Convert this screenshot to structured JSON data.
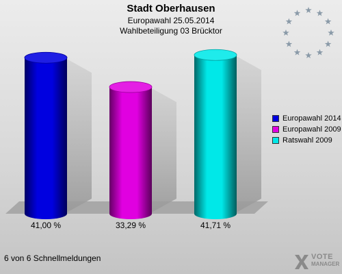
{
  "header": {
    "title": "Stadt Oberhausen",
    "subtitle1": "Europawahl 25.05.2014",
    "subtitle2": "Wahlbeteiligung 03 Brücktor"
  },
  "chart_data": {
    "type": "bar",
    "title": "Stadt Oberhausen",
    "subtitle": [
      "Europawahl 25.05.2014",
      "Wahlbeteiligung 03 Brücktor"
    ],
    "categories": [
      "Europawahl 2014",
      "Europawahl 2009",
      "Ratswahl 2009"
    ],
    "values": [
      41.0,
      33.29,
      41.71
    ],
    "value_labels": [
      "41,00 %",
      "33,29 %",
      "41,71 %"
    ],
    "colors": [
      "#0000e0",
      "#e000e0",
      "#00e8e8"
    ],
    "ylim": [
      0,
      45
    ],
    "legend_position": "right",
    "grid": false,
    "xlabel": "",
    "ylabel": ""
  },
  "legend": {
    "items": [
      {
        "label": "Europawahl 2014",
        "color": "#0000e0"
      },
      {
        "label": "Europawahl 2009",
        "color": "#e000e0"
      },
      {
        "label": "Ratswahl 2009",
        "color": "#00e8e8"
      }
    ]
  },
  "footer": {
    "text": "6 von 6 Schnellmeldungen"
  },
  "logo": {
    "line1": "VOTE",
    "line2": "MANAGER",
    "icon": "vote-manager-x-icon"
  },
  "emblem": {
    "icon": "eu-stars-icon",
    "color": "#8a9aa8"
  }
}
